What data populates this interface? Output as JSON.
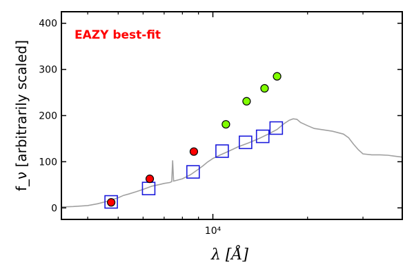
{
  "chart_data": {
    "type": "scatter",
    "title": "",
    "annotation": "EAZY best-fit",
    "annotation_color": "#ff0000",
    "xlabel": "λ [Å]",
    "ylabel": "f_ν [arbitrarily scaled]",
    "xscale": "log",
    "xlim": [
      3300,
      40000
    ],
    "ylim": [
      -25,
      425
    ],
    "xticks": [
      {
        "value": 10000,
        "label": "10⁴"
      }
    ],
    "yticks": [
      {
        "value": 0,
        "label": "0"
      },
      {
        "value": 100,
        "label": "100"
      },
      {
        "value": 200,
        "label": "200"
      },
      {
        "value": 300,
        "label": "300"
      },
      {
        "value": 400,
        "label": "400"
      }
    ],
    "grid": false,
    "series": [
      {
        "kind": "line",
        "color": "#a0a0a0",
        "points": [
          [
            3300,
            2
          ],
          [
            3600,
            3
          ],
          [
            4000,
            5
          ],
          [
            4300,
            9
          ],
          [
            4600,
            14
          ],
          [
            4800,
            18
          ],
          [
            5000,
            22
          ],
          [
            5200,
            27
          ],
          [
            5400,
            30
          ],
          [
            5700,
            35
          ],
          [
            6000,
            40
          ],
          [
            6400,
            47
          ],
          [
            6800,
            51
          ],
          [
            7000,
            53
          ],
          [
            7300,
            55
          ],
          [
            7400,
            57
          ],
          [
            7450,
            103
          ],
          [
            7500,
            58
          ],
          [
            7700,
            60
          ],
          [
            8000,
            63
          ],
          [
            8500,
            72
          ],
          [
            9000,
            84
          ],
          [
            9300,
            91
          ],
          [
            9600,
            99
          ],
          [
            10000,
            107
          ],
          [
            10500,
            114
          ],
          [
            11000,
            120
          ],
          [
            12000,
            132
          ],
          [
            13000,
            141
          ],
          [
            14000,
            150
          ],
          [
            15000,
            160
          ],
          [
            16000,
            170
          ],
          [
            16800,
            182
          ],
          [
            17500,
            190
          ],
          [
            18000,
            193
          ],
          [
            18500,
            192
          ],
          [
            19000,
            185
          ],
          [
            20000,
            178
          ],
          [
            21000,
            172
          ],
          [
            22000,
            170
          ],
          [
            24000,
            166
          ],
          [
            26000,
            160
          ],
          [
            27000,
            152
          ],
          [
            28000,
            138
          ],
          [
            29000,
            126
          ],
          [
            30000,
            117
          ],
          [
            32000,
            115
          ],
          [
            34000,
            115
          ],
          [
            36000,
            114
          ],
          [
            38000,
            112
          ],
          [
            40000,
            110
          ]
        ]
      },
      {
        "kind": "square",
        "stroke": "#1a1adc",
        "points": [
          [
            4750,
            13
          ],
          [
            6250,
            42
          ],
          [
            8650,
            78
          ],
          [
            10700,
            123
          ],
          [
            12700,
            142
          ],
          [
            14400,
            155
          ],
          [
            15900,
            173
          ]
        ]
      },
      {
        "kind": "circle",
        "fill": "#ff0000",
        "points": [
          [
            4750,
            12
          ],
          [
            6300,
            63
          ],
          [
            8700,
            122
          ]
        ]
      },
      {
        "kind": "circle",
        "fill": "#80ff00",
        "points": [
          [
            11000,
            181
          ],
          [
            12800,
            231
          ],
          [
            14600,
            259
          ],
          [
            16000,
            285
          ]
        ]
      }
    ]
  }
}
